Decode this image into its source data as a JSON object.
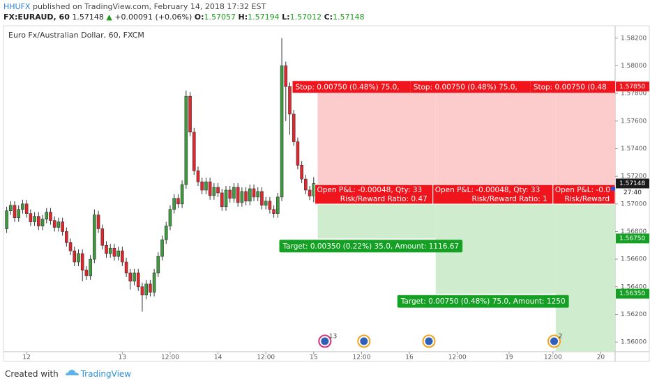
{
  "header": {
    "publisher": "HHUFX",
    "text": "published on TradingView.com, February 14, 2018 17:32 EST"
  },
  "chart_data": {
    "type": "candlestick",
    "title": "Euro Fx/Australian Dollar, 60, FXCM",
    "quote": {
      "symbol": "FX:EURAUD, 60",
      "arrow": "▲",
      "change": "+0.00091 (+0.06%)",
      "ohlc_labels": [
        "O:",
        "H:",
        "L:",
        "C:"
      ]
    },
    "x": [
      -5,
      -4,
      -3,
      -2,
      -1,
      0,
      1,
      2,
      3,
      4,
      5,
      6,
      7,
      8,
      9,
      10,
      11,
      12,
      13,
      14,
      15,
      16,
      17,
      18,
      19,
      20,
      21,
      22,
      23,
      24,
      25,
      26,
      27,
      28,
      29,
      30,
      31,
      32,
      33,
      34,
      35,
      36,
      37,
      38,
      39,
      40,
      41,
      42,
      43,
      44,
      45,
      46,
      47,
      48,
      49,
      50,
      51,
      52,
      53,
      54,
      55,
      56,
      57,
      58,
      59,
      60,
      61,
      62,
      63,
      64,
      65,
      66,
      67,
      68,
      69,
      70,
      71,
      72
    ],
    "open": [
      1.5682,
      1.5695,
      1.5699,
      1.569,
      1.5696,
      1.57,
      1.5693,
      1.5687,
      1.5691,
      1.5684,
      1.5689,
      1.5694,
      1.5688,
      1.5683,
      1.5687,
      1.568,
      1.5672,
      1.5666,
      1.5658,
      1.5664,
      1.5652,
      1.5648,
      1.566,
      1.5692,
      1.5682,
      1.567,
      1.5664,
      1.5668,
      1.5662,
      1.5666,
      1.5658,
      1.565,
      1.5644,
      1.565,
      1.564,
      1.5634,
      1.5642,
      1.5636,
      1.565,
      1.5662,
      1.5674,
      1.5684,
      1.5696,
      1.5704,
      1.57,
      1.5714,
      1.5778,
      1.5752,
      1.5724,
      1.5716,
      1.571,
      1.5716,
      1.5706,
      1.5712,
      1.5708,
      1.5698,
      1.571,
      1.5704,
      1.5712,
      1.5701,
      1.5709,
      1.5702,
      1.5711,
      1.5705,
      1.5709,
      1.5699,
      1.5702,
      1.5696,
      1.5693,
      1.5705,
      1.58,
      1.5785,
      1.5765,
      1.5745,
      1.5728,
      1.5718,
      1.571,
      1.57057
    ],
    "high": [
      1.5698,
      1.5702,
      1.5702,
      1.5699,
      1.5703,
      1.5703,
      1.5696,
      1.5694,
      1.5694,
      1.5692,
      1.5697,
      1.5697,
      1.5691,
      1.569,
      1.569,
      1.5683,
      1.5675,
      1.5669,
      1.5667,
      1.5667,
      1.5655,
      1.5663,
      1.5696,
      1.5695,
      1.5685,
      1.5673,
      1.5671,
      1.5671,
      1.5669,
      1.5669,
      1.5661,
      1.5653,
      1.5653,
      1.5653,
      1.5643,
      1.5645,
      1.5645,
      1.5653,
      1.5665,
      1.5677,
      1.5687,
      1.5699,
      1.5707,
      1.5707,
      1.5717,
      1.5782,
      1.5781,
      1.5755,
      1.5727,
      1.5719,
      1.5719,
      1.5719,
      1.5715,
      1.5715,
      1.5711,
      1.5713,
      1.5713,
      1.5715,
      1.5715,
      1.5712,
      1.5712,
      1.5714,
      1.5714,
      1.5712,
      1.5712,
      1.5705,
      1.5705,
      1.5699,
      1.5708,
      1.582,
      1.5803,
      1.5788,
      1.5768,
      1.5748,
      1.5731,
      1.5721,
      1.5713,
      1.57194
    ],
    "low": [
      1.5679,
      1.5692,
      1.5687,
      1.5687,
      1.5693,
      1.569,
      1.5684,
      1.5684,
      1.5681,
      1.5681,
      1.5686,
      1.5685,
      1.568,
      1.568,
      1.5677,
      1.5669,
      1.5663,
      1.5655,
      1.5655,
      1.5644,
      1.5645,
      1.5645,
      1.5657,
      1.5679,
      1.5667,
      1.5661,
      1.5661,
      1.5659,
      1.5659,
      1.5655,
      1.5647,
      1.5638,
      1.5641,
      1.5637,
      1.5622,
      1.5631,
      1.5633,
      1.5633,
      1.5647,
      1.5659,
      1.5671,
      1.5681,
      1.5693,
      1.5697,
      1.5697,
      1.5711,
      1.5749,
      1.5721,
      1.5713,
      1.5707,
      1.5707,
      1.5703,
      1.5703,
      1.5705,
      1.5695,
      1.5695,
      1.5701,
      1.5701,
      1.5698,
      1.5698,
      1.5699,
      1.5699,
      1.5702,
      1.5702,
      1.5696,
      1.5696,
      1.5693,
      1.569,
      1.569,
      1.5702,
      1.576,
      1.575,
      1.5742,
      1.5725,
      1.5715,
      1.5707,
      1.57027,
      1.57012
    ],
    "close": [
      1.5695,
      1.5699,
      1.569,
      1.5696,
      1.57,
      1.5693,
      1.5687,
      1.5691,
      1.5684,
      1.5689,
      1.5694,
      1.5688,
      1.5683,
      1.5687,
      1.568,
      1.5672,
      1.5666,
      1.5658,
      1.5664,
      1.5652,
      1.5648,
      1.566,
      1.5692,
      1.5682,
      1.567,
      1.5664,
      1.5668,
      1.5662,
      1.5666,
      1.5658,
      1.565,
      1.5644,
      1.565,
      1.564,
      1.5634,
      1.5642,
      1.5636,
      1.565,
      1.5662,
      1.5674,
      1.5684,
      1.5696,
      1.5704,
      1.57,
      1.5714,
      1.5778,
      1.5752,
      1.5724,
      1.5716,
      1.571,
      1.5716,
      1.5706,
      1.5712,
      1.5708,
      1.5698,
      1.571,
      1.5704,
      1.5712,
      1.5701,
      1.5709,
      1.5702,
      1.5711,
      1.5705,
      1.5709,
      1.5699,
      1.5702,
      1.5696,
      1.5693,
      1.5705,
      1.58,
      1.5785,
      1.5765,
      1.5745,
      1.5728,
      1.5718,
      1.571,
      1.57057,
      1.57148
    ],
    "up_color": "#3d9a3d",
    "down_color": "#e3262c",
    "countdown": "27:40",
    "xlim": [
      -5.8,
      147.6
    ],
    "xticks": [
      {
        "value": 0,
        "label": "12"
      },
      {
        "value": 24,
        "label": "13"
      },
      {
        "value": 36,
        "label": "12:00"
      },
      {
        "value": 48,
        "label": "14"
      },
      {
        "value": 60,
        "label": "12:00"
      },
      {
        "value": 72,
        "label": "15"
      },
      {
        "value": 84,
        "label": "12:00"
      },
      {
        "value": 96,
        "label": "16"
      },
      {
        "value": 108,
        "label": "12:00"
      },
      {
        "value": 121,
        "label": "19"
      },
      {
        "value": 132,
        "label": "12:00"
      },
      {
        "value": 144,
        "label": "20"
      }
    ],
    "ylim": [
      1.5593,
      1.5829
    ],
    "yticks": [
      {
        "value": 1.56,
        "label": "1.56000"
      },
      {
        "value": 1.562,
        "label": "1.56200"
      },
      {
        "value": 1.564,
        "label": "1.56400"
      },
      {
        "value": 1.566,
        "label": "1.56600"
      },
      {
        "value": 1.568,
        "label": "1.56800"
      },
      {
        "value": 1.57,
        "label": "1.57000"
      },
      {
        "value": 1.572,
        "label": "1.57200"
      },
      {
        "value": 1.574,
        "label": "1.57400"
      },
      {
        "value": 1.576,
        "label": "1.57600"
      },
      {
        "value": 1.578,
        "label": "1.57800"
      },
      {
        "value": 1.58,
        "label": "1.58000"
      },
      {
        "value": 1.582,
        "label": "1.58200"
      }
    ],
    "entry": 1.571,
    "stop": {
      "value": 1.5785,
      "label": "1.57850"
    },
    "positions": [
      {
        "start": 73,
        "stop_text": "Stop: 0.00750 (0.48%) 75.0,",
        "pl_text": "Open P&L: -0.00048, Qty: 33",
        "rr_text": "Risk/Reward Ratio: 0.47",
        "target": {
          "value": 1.5675,
          "label": "1.56750"
        },
        "target_text": "Target: 0.00350 (0.22%) 35.0, Amount: 1116.67"
      },
      {
        "start": 102.6,
        "stop_text": "Stop: 0.00750 (0.48%) 75.0,",
        "pl_text": "Open P&L: -0.00048, Qty: 33",
        "rr_text": "Risk/Reward Ratio: 1",
        "target": {
          "value": 1.5635,
          "label": "1.56350"
        },
        "target_text": "Target: 0.00750 (0.48%) 75.0, Amount: 1250"
      },
      {
        "start": 132.7,
        "stop_text": "Stop: 0.00750 (0.48",
        "pl_text": "Open P&L: -0.0",
        "rr_text": "Risk/Reward"
      }
    ],
    "events": [
      {
        "x": 74.8,
        "count": 13
      },
      {
        "x": 84.6
      },
      {
        "x": 100.9
      },
      {
        "x": 132.3,
        "count": 2
      }
    ]
  },
  "footer": {
    "created": "Created with",
    "brand": "TradingView"
  }
}
